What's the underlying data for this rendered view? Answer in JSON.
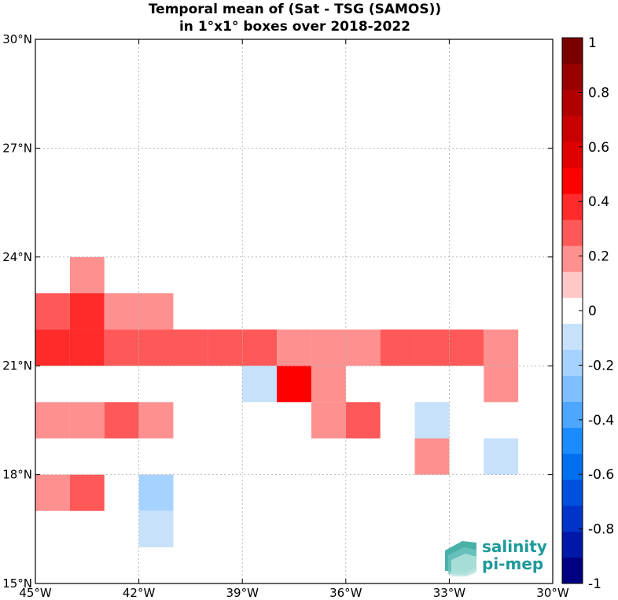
{
  "chart_data": {
    "type": "heatmap",
    "title": "Temporal mean of (Sat - TSG (SAMOS))",
    "subtitle": "in 1°x1° boxes over 2018-2022",
    "x_ticks": [
      "45°W",
      "42°W",
      "39°W",
      "36°W",
      "33°W",
      "30°W"
    ],
    "y_ticks": [
      "15°N",
      "18°N",
      "21°N",
      "24°N",
      "27°N",
      "30°N"
    ],
    "xlim": [
      -45,
      -30
    ],
    "ylim": [
      15,
      30
    ],
    "grid": true,
    "cells": [
      {
        "lon": -45,
        "lat": 21,
        "value": 0.35
      },
      {
        "lon": -44,
        "lat": 21,
        "value": 0.35
      },
      {
        "lon": -43,
        "lat": 21,
        "value": 0.25
      },
      {
        "lon": -42,
        "lat": 21,
        "value": 0.25
      },
      {
        "lon": -41,
        "lat": 21,
        "value": 0.25
      },
      {
        "lon": -40,
        "lat": 21,
        "value": 0.25
      },
      {
        "lon": -39,
        "lat": 21,
        "value": 0.25
      },
      {
        "lon": -38,
        "lat": 21,
        "value": 0.15
      },
      {
        "lon": -37,
        "lat": 21,
        "value": 0.15
      },
      {
        "lon": -36,
        "lat": 21,
        "value": 0.15
      },
      {
        "lon": -35,
        "lat": 21,
        "value": 0.25
      },
      {
        "lon": -34,
        "lat": 21,
        "value": 0.25
      },
      {
        "lon": -33,
        "lat": 21,
        "value": 0.25
      },
      {
        "lon": -32,
        "lat": 21,
        "value": 0.15
      },
      {
        "lon": -45,
        "lat": 22,
        "value": 0.25
      },
      {
        "lon": -44,
        "lat": 22,
        "value": 0.35
      },
      {
        "lon": -43,
        "lat": 22,
        "value": 0.15
      },
      {
        "lon": -42,
        "lat": 22,
        "value": 0.15
      },
      {
        "lon": -44,
        "lat": 23,
        "value": 0.15
      },
      {
        "lon": -39,
        "lat": 20,
        "value": -0.15
      },
      {
        "lon": -38,
        "lat": 20,
        "value": 0.45
      },
      {
        "lon": -37,
        "lat": 20,
        "value": 0.15
      },
      {
        "lon": -32,
        "lat": 20,
        "value": 0.15
      },
      {
        "lon": -45,
        "lat": 19,
        "value": 0.15
      },
      {
        "lon": -44,
        "lat": 19,
        "value": 0.15
      },
      {
        "lon": -43,
        "lat": 19,
        "value": 0.25
      },
      {
        "lon": -42,
        "lat": 19,
        "value": 0.15
      },
      {
        "lon": -37,
        "lat": 19,
        "value": 0.15
      },
      {
        "lon": -36,
        "lat": 19,
        "value": 0.25
      },
      {
        "lon": -34,
        "lat": 19,
        "value": -0.15
      },
      {
        "lon": -34,
        "lat": 18,
        "value": 0.15
      },
      {
        "lon": -32,
        "lat": 18,
        "value": -0.15
      },
      {
        "lon": -45,
        "lat": 17,
        "value": 0.15
      },
      {
        "lon": -44,
        "lat": 17,
        "value": 0.25
      },
      {
        "lon": -42,
        "lat": 17,
        "value": -0.25
      },
      {
        "lon": -42,
        "lat": 16,
        "value": -0.15
      }
    ],
    "colorbar": {
      "range": [
        -1,
        1
      ],
      "step": 0.1,
      "ticks": [
        "1",
        "0.8",
        "0.6",
        "0.4",
        "0.2",
        "0",
        "-0.2",
        "-0.4",
        "-0.6",
        "-0.8",
        "-1"
      ],
      "colors": [
        "#000080",
        "#0018a8",
        "#0033c8",
        "#0050e0",
        "#0070f0",
        "#1a8cff",
        "#4da6ff",
        "#80bfff",
        "#a6d2ff",
        "#c8e1fb",
        "#ffffff",
        "#ffc8c8",
        "#ff9090",
        "#ff5858",
        "#ff2a2a",
        "#ff0000",
        "#e00000",
        "#c80000",
        "#b00000",
        "#980000",
        "#7a0000"
      ]
    }
  },
  "logo": {
    "line1": "salinity",
    "line2": "pi-mep"
  }
}
